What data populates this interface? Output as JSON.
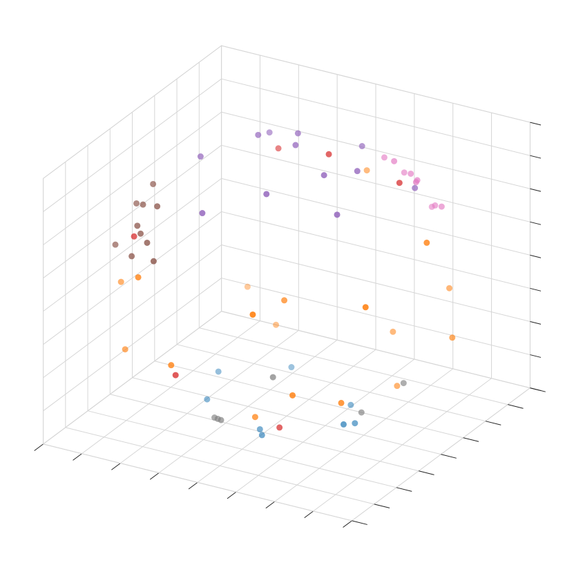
{
  "chart_data": {
    "type": "scatter3d",
    "xlim": [
      -1,
      1
    ],
    "ylim": [
      -1,
      1
    ],
    "zlim": [
      -1,
      1
    ],
    "xticks": [
      -1,
      -0.75,
      -0.5,
      -0.25,
      0,
      0.25,
      0.5,
      0.75,
      1
    ],
    "yticks": [
      -1,
      -0.75,
      -0.5,
      -0.25,
      0,
      0.25,
      0.5,
      0.75,
      1
    ],
    "zticks": [
      -1,
      -0.75,
      -0.5,
      -0.25,
      0,
      0.25,
      0.5,
      0.75,
      1
    ],
    "grid": true,
    "series": [
      {
        "color": "#9467bd",
        "x": [
          -0.3,
          0.1,
          0.4,
          -0.5,
          0.2,
          -0.1,
          0.5,
          -0.2,
          0.3,
          0.6,
          -0.4,
          0.0
        ],
        "y": [
          0.2,
          -0.4,
          0.1,
          -0.1,
          0.5,
          0.3,
          -0.3,
          -0.6,
          -0.1,
          0.4,
          0.5,
          0.1
        ],
        "z": [
          0.93,
          0.9,
          0.91,
          0.86,
          0.84,
          0.95,
          0.81,
          0.77,
          0.95,
          0.69,
          0.77,
          0.99
        ]
      },
      {
        "color": "#1f77b4",
        "x": [
          -0.4,
          0.1,
          0.5,
          -0.2,
          0.3,
          0.6,
          -0.5,
          0.0
        ],
        "y": [
          -0.2,
          -0.45,
          -0.1,
          0.4,
          0.2,
          -0.4,
          0.1,
          -0.3
        ],
        "z": [
          -0.89,
          -0.89,
          -0.86,
          -0.89,
          -0.93,
          -0.69,
          -0.86,
          -0.95
        ]
      },
      {
        "color": "#8c564b",
        "x": [
          -0.6,
          -0.7,
          -0.5,
          -0.8,
          -0.65,
          -0.55,
          -0.75,
          -0.4,
          -0.85,
          -0.6
        ],
        "y": [
          -0.6,
          -0.4,
          -0.7,
          -0.3,
          -0.55,
          -0.5,
          -0.2,
          -0.8,
          -0.45,
          -0.7
        ],
        "z": [
          0.5,
          0.59,
          0.51,
          0.52,
          0.52,
          0.67,
          0.63,
          0.45,
          0.27,
          0.38
        ]
      },
      {
        "color": "#e377c2",
        "x": [
          0.4,
          0.3,
          0.5,
          0.6,
          0.2,
          0.45,
          0.55,
          0.35,
          0.5
        ],
        "y": [
          0.7,
          0.8,
          0.6,
          0.7,
          0.75,
          0.85,
          0.5,
          0.6,
          0.8
        ],
        "z": [
          0.59,
          0.52,
          0.62,
          0.4,
          0.63,
          0.28,
          0.67,
          0.72,
          0.33
        ]
      },
      {
        "color": "#ff7f0e",
        "x": [
          0.8,
          -0.7,
          0.3,
          -0.2,
          0.6,
          0.9,
          -0.5,
          0.1,
          0.7,
          -0.9,
          0.4,
          0.0,
          0.5,
          -0.3,
          0.85,
          0.2,
          -0.6,
          0.65
        ],
        "y": [
          -0.5,
          -0.6,
          -0.9,
          -0.95,
          0.2,
          0.3,
          -0.8,
          -0.2,
          -0.6,
          -0.3,
          0.5,
          0.9,
          -0.8,
          0.4,
          0.1,
          -0.7,
          0.6,
          0.7
        ],
        "z": [
          0.3,
          -0.4,
          0.3,
          -0.2,
          -0.7,
          -0.3,
          0.3,
          0.0,
          -0.4,
          -0.1,
          -0.5,
          0.4,
          -0.3,
          -0.6,
          0.5,
          -0.6,
          -0.5,
          -0.2
        ]
      },
      {
        "color": "#d62728",
        "x": [
          0.1,
          -0.2,
          0.5,
          -0.7,
          0.3,
          -0.4
        ],
        "y": [
          0.3,
          -0.9,
          0.4,
          -0.5,
          -0.6,
          0.6
        ],
        "z": [
          0.85,
          -0.3,
          0.7,
          0.4,
          -0.7,
          0.6
        ]
      },
      {
        "color": "#7f7f7f",
        "x": [
          -0.1,
          -0.05,
          -0.15,
          0.7,
          0.6,
          0.2
        ],
        "y": [
          -0.6,
          -0.65,
          -0.55,
          0.1,
          -0.2,
          -0.5
        ],
        "z": [
          -0.75,
          -0.72,
          -0.78,
          -0.6,
          -0.7,
          -0.4
        ]
      }
    ]
  }
}
